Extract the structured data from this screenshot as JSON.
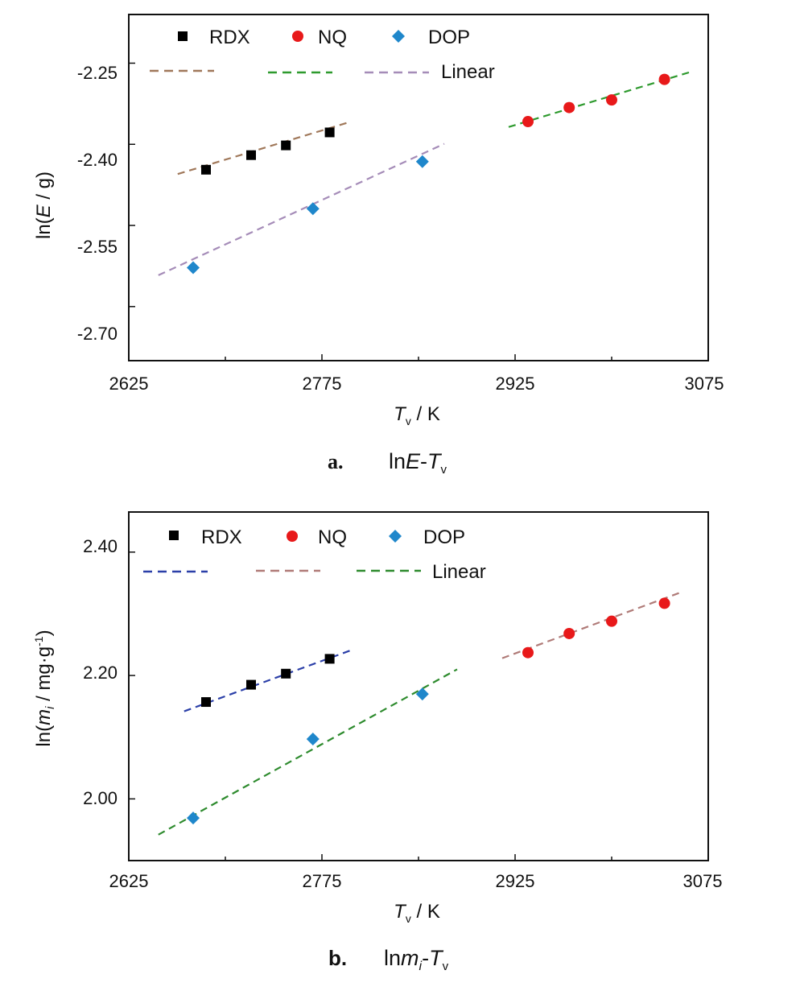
{
  "chart_data": [
    {
      "type": "scatter",
      "panel_letter": "a.",
      "caption_left": "ln",
      "caption_italic": "E",
      "caption_dash": "-",
      "caption_T": "T",
      "caption_sub": "v",
      "ylabel_prefix": "ln(",
      "ylabel_italic": "E",
      "ylabel_suffix": " / g)",
      "xlabel_T": "T",
      "xlabel_sub": "v",
      "xlabel_suffix": " / K",
      "xlim": [
        2625,
        3075
      ],
      "ylim": [
        -2.8,
        -2.16
      ],
      "xticks": [
        "2625",
        "2775",
        "2925",
        "3075"
      ],
      "yticks": [
        "-2.25",
        "-2.40",
        "-2.55",
        "-2.70"
      ],
      "series": [
        {
          "name": "RDX",
          "marker": "square",
          "color": "#000000",
          "fit_color": "#A0785A",
          "points": [
            [
              2685,
              -2.447
            ],
            [
              2720,
              -2.42
            ],
            [
              2747,
              -2.402
            ],
            [
              2781,
              -2.378
            ]
          ],
          "fit": [
            [
              2663,
              -2.455
            ],
            [
              2795,
              -2.36
            ]
          ]
        },
        {
          "name": "NQ",
          "marker": "circle",
          "color": "#E8191A",
          "fit_color": "#2E9A2E",
          "points": [
            [
              2935,
              -2.358
            ],
            [
              2967,
              -2.332
            ],
            [
              3000,
              -2.318
            ],
            [
              3041,
              -2.28
            ]
          ],
          "fit": [
            [
              2920,
              -2.368
            ],
            [
              3063,
              -2.265
            ]
          ]
        },
        {
          "name": "DOP",
          "marker": "diamond",
          "color": "#1F87CB",
          "fit_color": "#A58CB8",
          "points": [
            [
              2675,
              -2.628
            ],
            [
              2768,
              -2.519
            ],
            [
              2853,
              -2.432
            ]
          ],
          "fit": [
            [
              2648,
              -2.642
            ],
            [
              2870,
              -2.399
            ]
          ]
        }
      ],
      "legend_entries": [
        "RDX",
        "NQ",
        "DOP"
      ],
      "legend_linear": "Linear"
    },
    {
      "type": "scatter",
      "panel_letter": "b.",
      "caption_left": "ln",
      "caption_italic": "m",
      "caption_sub_i": "i",
      "caption_dash": "-",
      "caption_T": "T",
      "caption_sub": "v",
      "ylabel_prefix": "ln(",
      "ylabel_italic": "m",
      "ylabel_sub": "i",
      "ylabel_suffix": " / mg·g",
      "ylabel_sup": "-1",
      "ylabel_close": ")",
      "xlabel_T": "T",
      "xlabel_sub": "v",
      "xlabel_suffix": " / K",
      "xlim": [
        2625,
        3075
      ],
      "ylim": [
        1.9,
        2.465
      ],
      "xticks": [
        "2625",
        "2775",
        "2925",
        "3075"
      ],
      "yticks": [
        "2.40",
        "2.20",
        "2.00"
      ],
      "series": [
        {
          "name": "RDX",
          "marker": "square",
          "color": "#000000",
          "fit_color": "#2B3FA8",
          "points": [
            [
              2685,
              2.157
            ],
            [
              2720,
              2.185
            ],
            [
              2747,
              2.203
            ],
            [
              2781,
              2.227
            ]
          ],
          "fit": [
            [
              2668,
              2.142
            ],
            [
              2799,
              2.242
            ]
          ]
        },
        {
          "name": "NQ",
          "marker": "circle",
          "color": "#E8191A",
          "fit_color": "#B07B78",
          "points": [
            [
              2935,
              2.237
            ],
            [
              2967,
              2.268
            ],
            [
              3000,
              2.288
            ],
            [
              3041,
              2.317
            ]
          ],
          "fit": [
            [
              2915,
              2.228
            ],
            [
              3054,
              2.335
            ]
          ]
        },
        {
          "name": "DOP",
          "marker": "diamond",
          "color": "#1F87CB",
          "fit_color": "#2E8B2E",
          "points": [
            [
              2675,
              1.969
            ],
            [
              2768,
              2.097
            ],
            [
              2853,
              2.17
            ]
          ],
          "fit": [
            [
              2648,
              1.942
            ],
            [
              2880,
              2.21
            ]
          ]
        }
      ],
      "legend_entries": [
        "RDX",
        "NQ",
        "DOP"
      ],
      "legend_linear": "Linear"
    }
  ]
}
